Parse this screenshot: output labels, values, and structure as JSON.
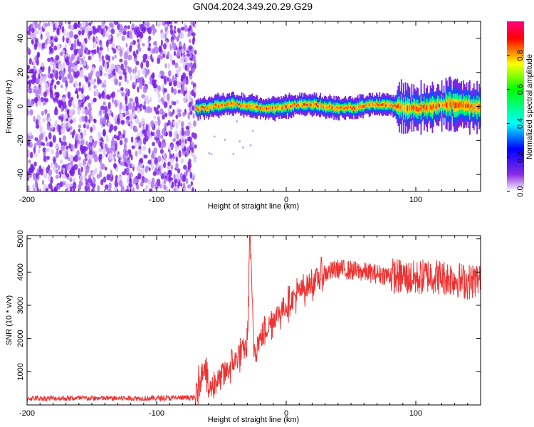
{
  "figure_title": "GN04.2024.349.20.29.G29",
  "chart_data": [
    {
      "type": "heatmap",
      "xlabel": "Height of straight line (km)",
      "ylabel": "Frequency (Hz)",
      "xlim": [
        -200,
        150
      ],
      "ylim": [
        -50,
        50
      ],
      "xticks": [
        -200,
        -100,
        0,
        100
      ],
      "yticks": [
        -40,
        -20,
        0,
        20,
        40
      ],
      "colorbar": {
        "label": "Normalized spectral amplitude",
        "range": [
          0,
          1
        ],
        "ticks": [
          0.0,
          0.2,
          0.4,
          0.6,
          0.8
        ],
        "tick_labels": [
          "0.0",
          "0.2",
          "0.4",
          "0.6",
          "0.8"
        ],
        "colormap": [
          "#ffffff",
          "#8a2be2",
          "#0000ff",
          "#00ffff",
          "#00ff00",
          "#ffff00",
          "#ff0000",
          "#ff00ff"
        ]
      },
      "description_regions": [
        {
          "x_range": [
            -200,
            -70
          ],
          "pattern": "scattered noise, full frequency band",
          "amplitude": [
            0.05,
            0.2
          ]
        },
        {
          "x_range": [
            -70,
            150
          ],
          "pattern": "narrow band centered near 0 Hz",
          "center_hz": 0,
          "amplitude_peak": 0.9
        }
      ]
    },
    {
      "type": "line",
      "xlabel": "Height of straight line (km)",
      "ylabel": "SNR (10 * v/v)",
      "xlim": [
        -200,
        150
      ],
      "ylim": [
        0,
        5100
      ],
      "xticks": [
        -200,
        -100,
        0,
        100
      ],
      "yticks": [
        1000,
        2000,
        3000,
        4000,
        5000
      ],
      "color": "#ee3333",
      "series": [
        {
          "x": [
            -200,
            -150,
            -100,
            -70,
            -63,
            -60,
            -55,
            -50,
            -40,
            -30,
            -28,
            -25,
            -20,
            -10,
            0,
            10,
            20,
            30,
            40,
            50,
            60,
            70,
            80,
            90,
            100,
            110,
            120,
            130,
            140,
            150
          ],
          "y": [
            200,
            200,
            200,
            220,
            1300,
            400,
            700,
            800,
            1300,
            1800,
            5100,
            1700,
            2000,
            2600,
            3000,
            3400,
            3700,
            3950,
            4100,
            4050,
            4000,
            3950,
            3900,
            3850,
            3800,
            3900,
            3850,
            3800,
            3700,
            3800
          ]
        }
      ]
    }
  ]
}
